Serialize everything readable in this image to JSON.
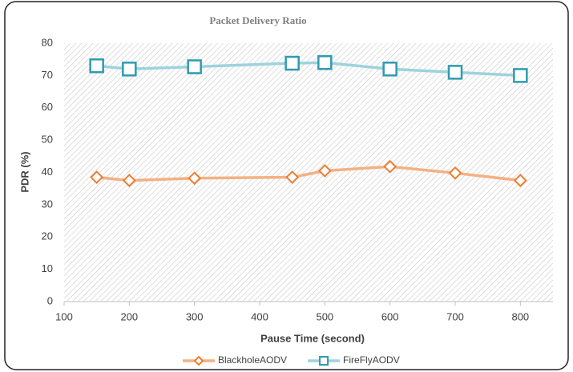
{
  "chart_data": {
    "type": "line",
    "title": "Packet Delivery Ratio",
    "x_label": "Pause Time (second)",
    "y_label": "PDR (%)",
    "x": [
      150,
      200,
      300,
      450,
      500,
      600,
      700,
      800
    ],
    "series": [
      {
        "name": "BlackholeAODV",
        "color": "#f4b183",
        "marker_color": "#ed7d31",
        "marker": "diamond",
        "values": [
          38.5,
          37.5,
          38.2,
          38.5,
          40.5,
          41.8,
          39.8,
          37.5
        ]
      },
      {
        "name": "FireFlyAODV",
        "color": "#9dd3dc",
        "marker_color": "#2e9bb0",
        "marker": "square",
        "values": [
          73,
          72,
          72.7,
          73.8,
          74,
          72,
          71,
          70
        ]
      }
    ],
    "xlim": [
      100,
      850
    ],
    "xticks": [
      100,
      200,
      300,
      400,
      500,
      600,
      700,
      800
    ],
    "ylim": [
      0,
      80
    ],
    "yticks": [
      0,
      10,
      20,
      30,
      40,
      50,
      60,
      70,
      80
    ],
    "legend": "bottom"
  }
}
